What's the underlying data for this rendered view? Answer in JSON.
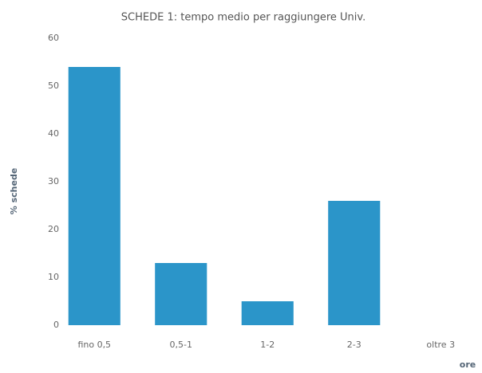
{
  "chart_data": {
    "type": "bar",
    "title": "SCHEDE 1: tempo medio per raggiungere Univ.",
    "x_label": "ore",
    "y_label": "% schede",
    "categories": [
      "fino 0,5",
      "0,5-1",
      "1-2",
      "2-3",
      "oltre 3"
    ],
    "values": [
      54,
      13,
      5,
      26,
      0
    ],
    "color": "#2b95c9",
    "ylim": [
      0,
      60
    ],
    "yticks": [
      0,
      10,
      20,
      30,
      40,
      50,
      60
    ],
    "grid": false
  }
}
